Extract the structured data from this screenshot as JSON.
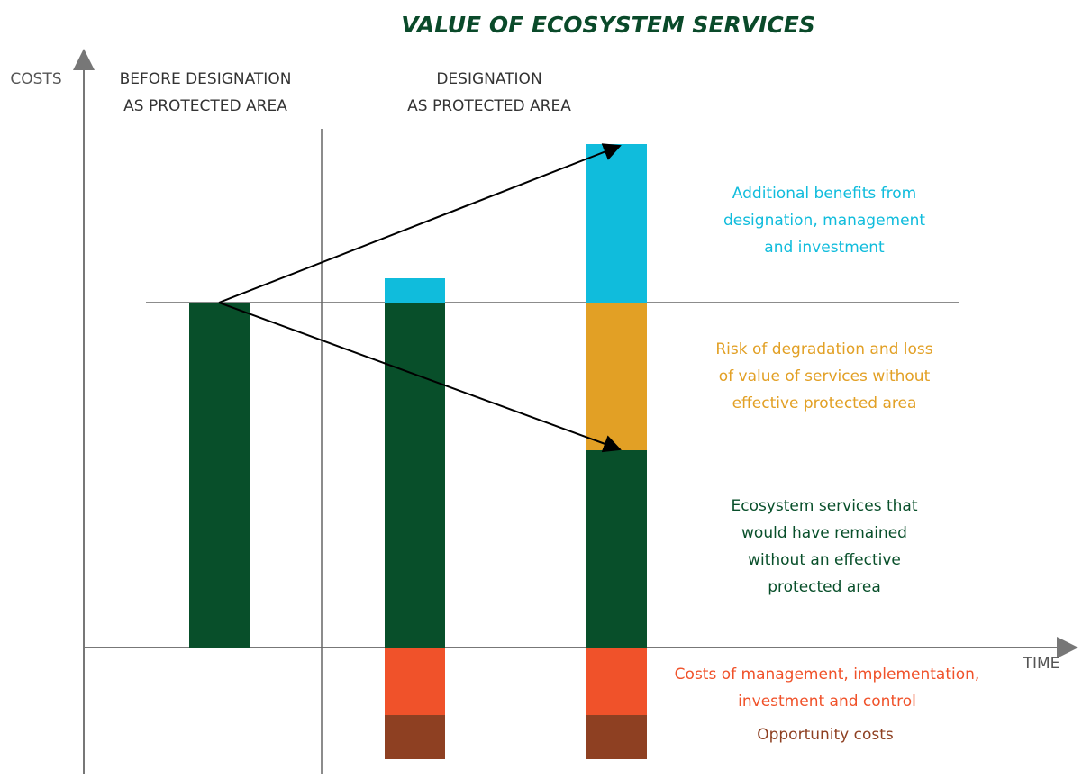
{
  "title": "VALUE OF ECOSYSTEM SERVICES",
  "axes": {
    "y_label": "COSTS",
    "x_label": "TIME"
  },
  "phases": [
    {
      "lines": [
        "BEFORE DESIGNATION",
        "AS PROTECTED AREA"
      ]
    },
    {
      "lines": [
        "DESIGNATION",
        "AS PROTECTED AREA"
      ]
    }
  ],
  "legend": [
    {
      "lines": [
        "Additional benefits from",
        "designation, management",
        "and investment"
      ]
    },
    {
      "lines": [
        "Risk of degradation and loss",
        "of value of services without",
        "effective protected area"
      ]
    },
    {
      "lines": [
        "Ecosystem services that",
        "would have remained",
        "without an effective",
        "protected area"
      ]
    },
    {
      "lines": [
        "Costs of management, implementation,",
        "investment and control"
      ]
    },
    {
      "lines": [
        "Opportunity costs"
      ]
    }
  ]
}
